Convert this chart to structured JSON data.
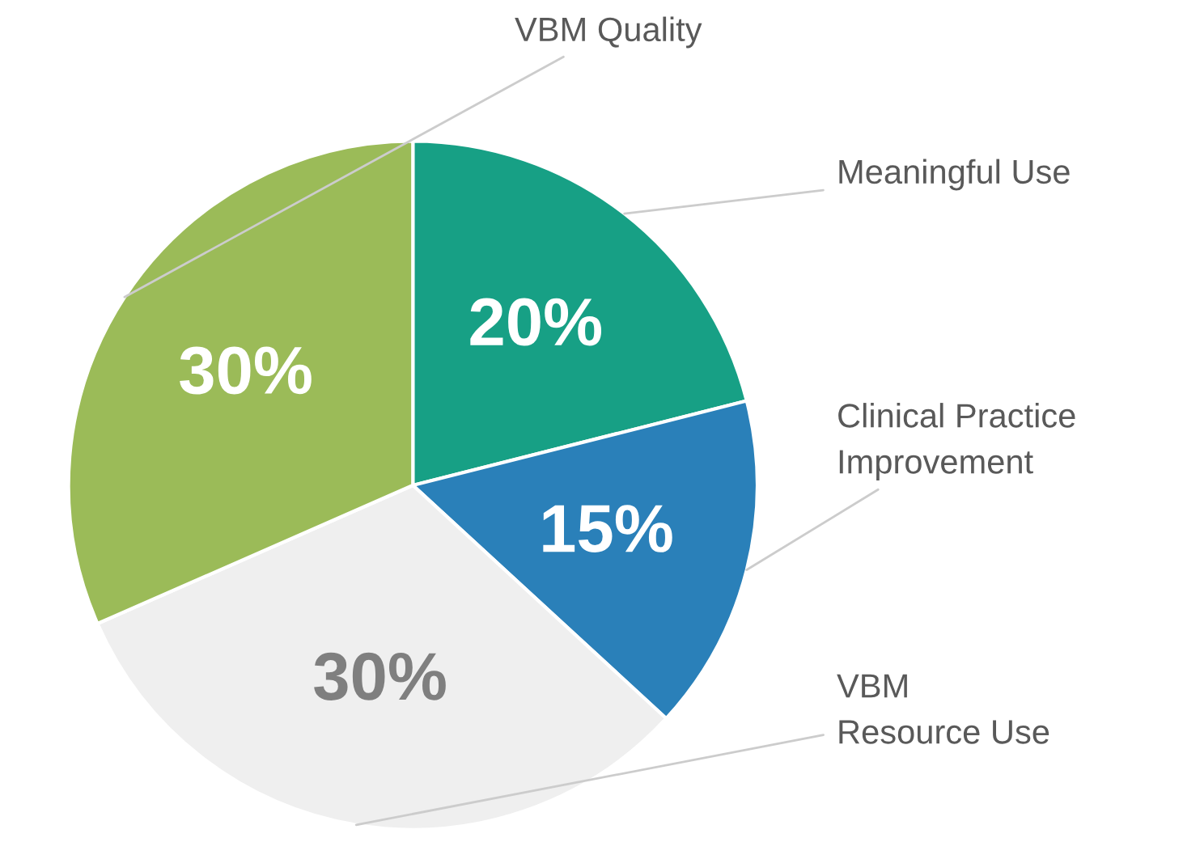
{
  "chart_data": {
    "type": "pie",
    "categories": [
      "Meaningful Use",
      "Clinical Practice\nImprovement",
      "VBM\nResource Use",
      "VBM Quality"
    ],
    "values": [
      20,
      15,
      30,
      30
    ],
    "colors": [
      "#17a085",
      "#2a80b9",
      "#efefef",
      "#9bbb58"
    ],
    "value_labels": [
      "20%",
      "15%",
      "30%",
      "30%"
    ],
    "legend": false
  }
}
